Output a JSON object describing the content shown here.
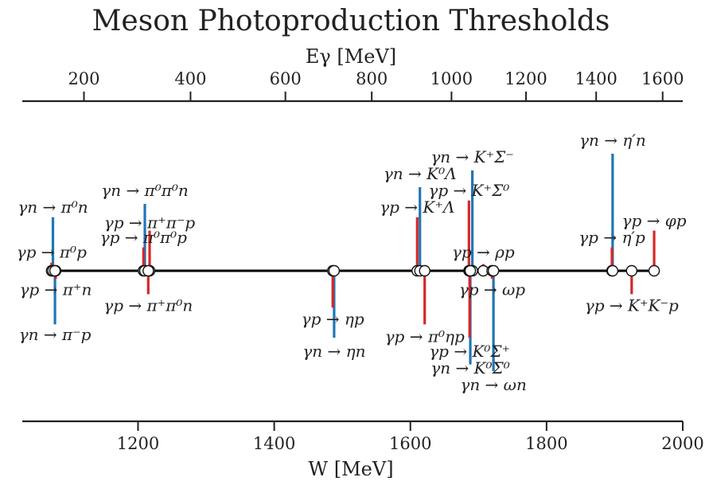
{
  "chart_data": {
    "type": "scatter",
    "title": "Meson Photoproduction Thresholds",
    "xlabel_bottom": "W [MeV]",
    "xlabel_top": "Eγ [MeV]",
    "xlim": [
      1030,
      2000
    ],
    "xticks_bottom": [
      1200,
      1400,
      1600,
      1800,
      2000
    ],
    "xticks_top": [
      200,
      400,
      600,
      800,
      1000,
      1200,
      1400,
      1600
    ],
    "grid": false,
    "series_colors": {
      "proton": "#d62728",
      "neutron": "#1f77b4"
    },
    "points": [
      {
        "label": "γp → π⁰p",
        "W": 1073,
        "target": "p",
        "height": 0.12,
        "label_y": 0.28
      },
      {
        "label": "γn → π⁰n",
        "W": 1075,
        "target": "n",
        "height": 0.8,
        "label_y": 0.95
      },
      {
        "label": "γp → π⁺n",
        "W": 1079,
        "target": "p",
        "height": -0.12,
        "label_y": -0.28
      },
      {
        "label": "γn → π⁻p",
        "W": 1078,
        "target": "n",
        "height": -0.8,
        "label_y": -0.95
      },
      {
        "label": "γp → π⁰π⁰p",
        "W": 1208,
        "target": "p",
        "height": 0.35,
        "label_y": 0.5
      },
      {
        "label": "γn → π⁰π⁰n",
        "W": 1210,
        "target": "n",
        "height": 1.0,
        "label_y": 1.2
      },
      {
        "label": "γp → π⁺π⁻p",
        "W": 1217,
        "target": "p",
        "height": 0.6,
        "label_y": 0.72
      },
      {
        "label": "γp → π⁺π⁰n",
        "W": 1215,
        "target": "p",
        "height": -0.35,
        "label_y": -0.52
      },
      {
        "label": "γp → ηp",
        "W": 1486,
        "target": "p",
        "height": -0.55,
        "label_y": -0.72
      },
      {
        "label": "γn → ηn",
        "W": 1488,
        "target": "n",
        "height": -1.0,
        "label_y": -1.2
      },
      {
        "label": "γp → K⁺Λ",
        "W": 1610,
        "target": "p",
        "height": 0.8,
        "label_y": 0.95
      },
      {
        "label": "γn → K⁰Λ",
        "W": 1614,
        "target": "n",
        "height": 1.25,
        "label_y": 1.45
      },
      {
        "label": "γp → π⁰ηp",
        "W": 1621,
        "target": "p",
        "height": -0.8,
        "label_y": -0.98
      },
      {
        "label": "γp → K⁺Σ⁰",
        "W": 1686,
        "target": "p",
        "height": 1.05,
        "label_y": 1.2
      },
      {
        "label": "γn → K⁺Σ⁻",
        "W": 1691,
        "target": "n",
        "height": 1.5,
        "label_y": 1.7
      },
      {
        "label": "γp → K⁰Σ⁺",
        "W": 1687,
        "target": "p",
        "height": -1.0,
        "label_y": -1.2
      },
      {
        "label": "γn → K⁰Σ⁰",
        "W": 1688,
        "target": "n",
        "height": -1.4,
        "label_y": -1.45
      },
      {
        "label": "γp → ρp",
        "W": 1707,
        "target": "p",
        "height": 0.1,
        "label_y": 0.28
      },
      {
        "label": "γp → ωp",
        "W": 1720,
        "target": "p",
        "height": -0.12,
        "label_y": -0.28
      },
      {
        "label": "γn → ωn",
        "W": 1722,
        "target": "n",
        "height": -1.5,
        "label_y": -1.7
      },
      {
        "label": "γp → η′p",
        "W": 1896,
        "target": "p",
        "height": 0.35,
        "label_y": 0.5
      },
      {
        "label": "γn → η′n",
        "W": 1897,
        "target": "n",
        "height": 1.75,
        "label_y": 1.95
      },
      {
        "label": "γp → K⁺K⁻p",
        "W": 1925,
        "target": "p",
        "height": -0.35,
        "label_y": -0.52
      },
      {
        "label": "γp → φp",
        "W": 1958,
        "target": "p",
        "height": 0.6,
        "label_y": 0.75
      }
    ]
  }
}
